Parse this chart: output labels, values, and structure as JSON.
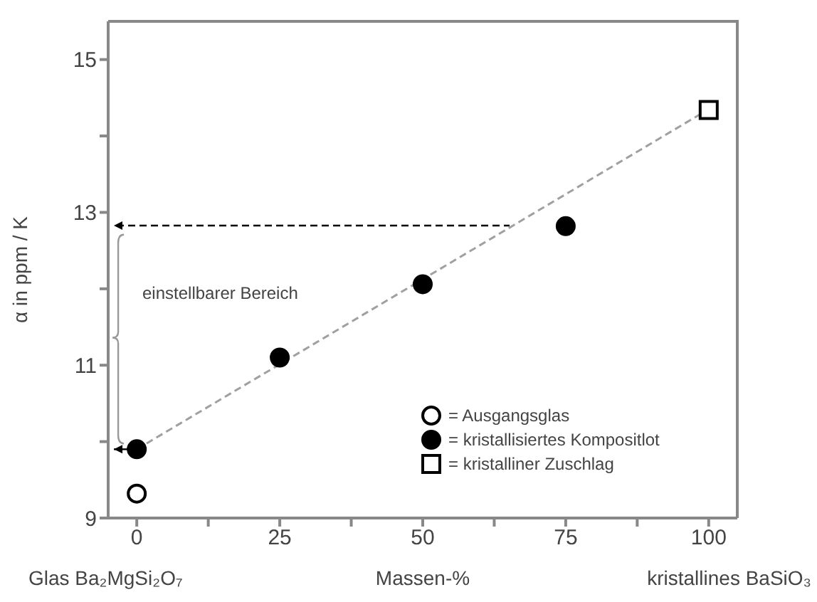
{
  "chart_data": {
    "type": "scatter",
    "xlabel": "Massen-%",
    "ylabel": "α in ppm / K",
    "xlim": [
      -5,
      105
    ],
    "ylim": [
      9,
      15.5
    ],
    "xticks": [
      0,
      {
        "value": 12.5,
        "label": null
      },
      25,
      {
        "value": 37.5,
        "label": null
      },
      50,
      {
        "value": 62.5,
        "label": null
      },
      75,
      {
        "value": 87.5,
        "label": null
      },
      100
    ],
    "yticks": [
      9,
      {
        "value": 10,
        "label": null
      },
      11,
      {
        "value": 12,
        "label": null
      },
      13,
      {
        "value": 14,
        "label": null
      },
      15
    ],
    "grid": false,
    "legend": "bottom right",
    "annotations": [
      "einstellbarer Bereich",
      "Glas Ba₂MgSi₂O₇",
      "kristallines BaSiO₃"
    ],
    "series": [
      {
        "type": "line",
        "color": "#a0a0a0",
        "x": [
          0,
          100
        ],
        "values": [
          9.9,
          14.35
        ],
        "line_style": "dashed"
      },
      {
        "name": "= Ausgangsglas",
        "color": "#ffffff",
        "marker": "circle",
        "x": [
          0
        ],
        "values": [
          9.32
        ]
      },
      {
        "name": "= kristallisiertes Kompositlot",
        "color": "#000000",
        "marker": "circle",
        "x": [
          0,
          25,
          50,
          75
        ],
        "values": [
          9.9,
          11.1,
          12.06,
          12.82
        ]
      },
      {
        "name": "= kristalliner Zuschlag",
        "color": "#ffffff",
        "marker": "square",
        "x": [
          100
        ],
        "values": [
          14.34
        ]
      }
    ]
  }
}
